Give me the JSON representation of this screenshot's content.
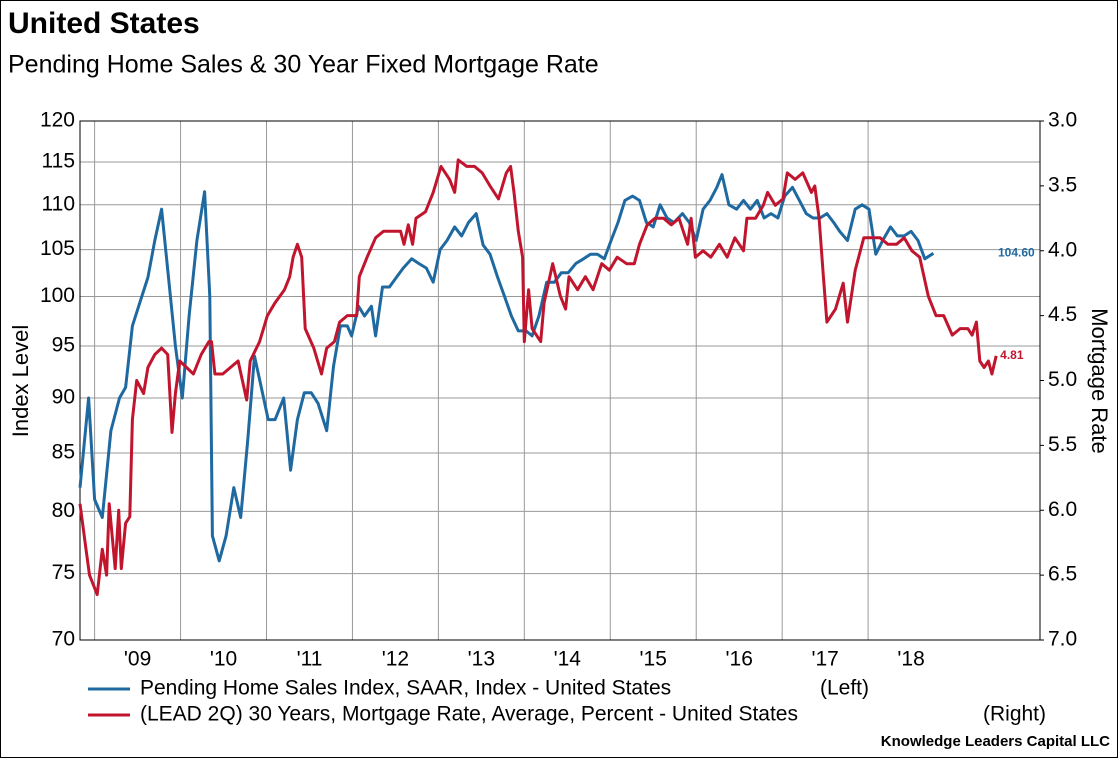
{
  "chart_data": {
    "type": "line",
    "title": "United States",
    "subtitle": "Pending Home Sales & 30 Year Fixed Mortgage Rate",
    "ylabel": "Index Level",
    "y2label": "Mortgage Rate",
    "source": "Knowledge Leaders Capital LLC",
    "xlim": [
      2008.83,
      2020.0
    ],
    "xticks": [
      {
        "value": 2009,
        "label": "'09"
      },
      {
        "value": 2010,
        "label": "'10"
      },
      {
        "value": 2011,
        "label": "'11"
      },
      {
        "value": 2012,
        "label": "'12"
      },
      {
        "value": 2013,
        "label": "'13"
      },
      {
        "value": 2014,
        "label": "'14"
      },
      {
        "value": 2015,
        "label": "'15"
      },
      {
        "value": 2016,
        "label": "'16"
      },
      {
        "value": 2017,
        "label": "'17"
      },
      {
        "value": 2018,
        "label": "'18"
      }
    ],
    "ylim": [
      70,
      120
    ],
    "ylog": true,
    "yticks": [
      70,
      75,
      80,
      85,
      90,
      95,
      100,
      105,
      110,
      115,
      120
    ],
    "y2lim": [
      3,
      7
    ],
    "y2_inverted": true,
    "y2ticks": [
      {
        "value": 3,
        "label": "3.0"
      },
      {
        "value": 3.5,
        "label": "3.5"
      },
      {
        "value": 4,
        "label": "4.0"
      },
      {
        "value": 4.5,
        "label": "4.5"
      },
      {
        "value": 5,
        "label": "5.0"
      },
      {
        "value": 5.5,
        "label": "5.5"
      },
      {
        "value": 6,
        "label": "6.0"
      },
      {
        "value": 6.5,
        "label": "6.5"
      },
      {
        "value": 7,
        "label": "7.0"
      }
    ],
    "grid": true,
    "series": [
      {
        "name": "Pending Home Sales Index, SAAR, Index - United States",
        "side": "(Left)",
        "color": "#1f69a1",
        "axis": "y",
        "end_label": "104.60",
        "x": [
          2008.83,
          2008.93,
          2009.0,
          2009.09,
          2009.19,
          2009.29,
          2009.36,
          2009.44,
          2009.53,
          2009.62,
          2009.7,
          2009.78,
          2009.86,
          2009.94,
          2010.02,
          2010.1,
          2010.19,
          2010.28,
          2010.34,
          2010.37,
          2010.45,
          2010.53,
          2010.62,
          2010.7,
          2010.78,
          2010.86,
          2010.94,
          2011.02,
          2011.1,
          2011.2,
          2011.28,
          2011.36,
          2011.44,
          2011.52,
          2011.6,
          2011.7,
          2011.78,
          2011.86,
          2011.94,
          2011.99,
          2012.07,
          2012.14,
          2012.22,
          2012.27,
          2012.35,
          2012.43,
          2012.51,
          2012.59,
          2012.69,
          2012.77,
          2012.86,
          2012.94,
          2013.02,
          2013.1,
          2013.19,
          2013.27,
          2013.35,
          2013.44,
          2013.52,
          2013.6,
          2013.69,
          2013.77,
          2013.85,
          2013.93,
          2014.02,
          2014.09,
          2014.17,
          2014.26,
          2014.35,
          2014.43,
          2014.51,
          2014.6,
          2014.69,
          2014.77,
          2014.85,
          2014.93,
          2015.01,
          2015.09,
          2015.17,
          2015.26,
          2015.34,
          2015.42,
          2015.5,
          2015.58,
          2015.66,
          2015.74,
          2015.84,
          2015.92,
          2016.0,
          2016.08,
          2016.16,
          2016.24,
          2016.3,
          2016.38,
          2016.47,
          2016.55,
          2016.63,
          2016.71,
          2016.79,
          2016.87,
          2016.95,
          2017.03,
          2017.12,
          2017.2,
          2017.28,
          2017.36,
          2017.44,
          2017.52,
          2017.6,
          2017.67,
          2017.76,
          2017.85,
          2017.93,
          2018.01,
          2018.09,
          2018.17,
          2018.26,
          2018.34,
          2018.42,
          2018.5,
          2018.58,
          2018.66,
          2018.76
        ],
        "values": [
          82,
          90,
          81,
          79.5,
          87,
          90,
          91,
          97,
          99.5,
          102,
          106,
          109.5,
          102,
          95,
          90,
          98,
          106,
          111.5,
          100,
          78,
          76,
          78,
          82,
          79.5,
          86,
          94,
          91,
          88,
          88,
          90,
          83.5,
          88,
          90.5,
          90.5,
          89.5,
          87,
          93,
          97,
          97,
          96,
          99,
          98,
          99,
          96,
          101,
          101,
          102,
          103,
          104,
          103.5,
          103,
          101.5,
          105,
          106,
          107.5,
          106.5,
          108,
          109,
          105.5,
          104.5,
          102,
          100,
          98,
          96.5,
          96.5,
          96,
          98,
          101.5,
          101.5,
          102.5,
          102.5,
          103.5,
          104,
          104.5,
          104.5,
          104,
          106,
          108,
          110.5,
          111,
          110.5,
          108,
          107.5,
          110,
          108.5,
          108,
          109,
          108,
          106,
          109.5,
          110.5,
          112,
          113.5,
          110,
          109.5,
          110.5,
          109.5,
          110.5,
          108.5,
          109,
          108.5,
          111,
          112,
          110.5,
          109,
          108.5,
          108.5,
          109,
          108,
          107,
          106,
          109.5,
          110,
          109.5,
          104.5,
          106,
          107.5,
          106.5,
          106.5,
          107,
          106,
          104,
          104.6
        ]
      },
      {
        "name": "(LEAD 2Q) 30 Years, Mortgage Rate, Average, Percent - United States",
        "side": "(Right)",
        "color": "#c1152e",
        "axis": "y2",
        "end_label": "4.81",
        "x": [
          2008.83,
          2008.9,
          2008.94,
          2009.03,
          2009.09,
          2009.14,
          2009.17,
          2009.24,
          2009.28,
          2009.31,
          2009.36,
          2009.41,
          2009.44,
          2009.49,
          2009.57,
          2009.62,
          2009.7,
          2009.78,
          2009.85,
          2009.9,
          2009.94,
          2009.99,
          2010.07,
          2010.15,
          2010.24,
          2010.33,
          2010.36,
          2010.4,
          2010.49,
          2010.58,
          2010.67,
          2010.77,
          2010.81,
          2010.92,
          2011.01,
          2011.1,
          2011.21,
          2011.27,
          2011.31,
          2011.36,
          2011.41,
          2011.45,
          2011.55,
          2011.64,
          2011.7,
          2011.79,
          2011.85,
          2011.94,
          2012.05,
          2012.08,
          2012.17,
          2012.27,
          2012.36,
          2012.47,
          2012.56,
          2012.6,
          2012.65,
          2012.7,
          2012.74,
          2012.85,
          2012.94,
          2013.03,
          2013.13,
          2013.19,
          2013.23,
          2013.33,
          2013.42,
          2013.51,
          2013.6,
          2013.7,
          2013.79,
          2013.84,
          2013.88,
          2013.93,
          2013.98,
          2014.0,
          2014.05,
          2014.09,
          2014.19,
          2014.23,
          2014.33,
          2014.42,
          2014.48,
          2014.52,
          2014.62,
          2014.71,
          2014.8,
          2014.9,
          2014.99,
          2015.08,
          2015.19,
          2015.28,
          2015.34,
          2015.43,
          2015.52,
          2015.62,
          2015.71,
          2015.8,
          2015.9,
          2015.94,
          2015.99,
          2016.08,
          2016.17,
          2016.27,
          2016.36,
          2016.45,
          2016.55,
          2016.59,
          2016.69,
          2016.78,
          2016.83,
          2016.92,
          2017.01,
          2017.06,
          2017.15,
          2017.24,
          2017.34,
          2017.38,
          2017.43,
          2017.48,
          2017.52,
          2017.62,
          2017.71,
          2017.76,
          2017.85,
          2017.95,
          2018.05,
          2018.14,
          2018.23,
          2018.33,
          2018.42,
          2018.51,
          2018.6,
          2018.7,
          2018.79,
          2018.88,
          2018.98,
          2019.07,
          2019.16,
          2019.21,
          2019.26,
          2019.3,
          2019.35,
          2019.4,
          2019.44,
          2019.49
        ],
        "values": [
          5.95,
          6.3,
          6.5,
          6.65,
          6.3,
          6.5,
          5.95,
          6.45,
          6.0,
          6.45,
          6.1,
          6.05,
          5.3,
          5.0,
          5.1,
          4.9,
          4.8,
          4.75,
          4.8,
          5.4,
          5.1,
          4.85,
          4.9,
          4.95,
          4.8,
          4.7,
          4.7,
          4.95,
          4.95,
          4.9,
          4.85,
          5.15,
          4.85,
          4.7,
          4.5,
          4.4,
          4.3,
          4.2,
          4.05,
          3.95,
          4.05,
          4.6,
          4.75,
          4.95,
          4.75,
          4.7,
          4.55,
          4.5,
          4.5,
          4.2,
          4.05,
          3.9,
          3.85,
          3.85,
          3.85,
          3.95,
          3.8,
          3.95,
          3.75,
          3.7,
          3.55,
          3.35,
          3.45,
          3.55,
          3.3,
          3.35,
          3.35,
          3.4,
          3.5,
          3.6,
          3.4,
          3.35,
          3.55,
          3.85,
          4.05,
          4.7,
          4.3,
          4.6,
          4.7,
          4.4,
          4.1,
          4.35,
          4.45,
          4.2,
          4.3,
          4.2,
          4.3,
          4.1,
          4.15,
          4.05,
          4.1,
          4.1,
          3.95,
          3.8,
          3.75,
          3.75,
          3.8,
          3.75,
          3.95,
          3.75,
          4.05,
          4.0,
          4.05,
          3.95,
          4.05,
          3.9,
          4.0,
          3.75,
          3.75,
          3.65,
          3.55,
          3.65,
          3.6,
          3.4,
          3.45,
          3.4,
          3.55,
          3.5,
          3.75,
          4.2,
          4.55,
          4.45,
          4.25,
          4.55,
          4.15,
          3.9,
          3.9,
          3.9,
          3.95,
          3.95,
          3.9,
          4.0,
          4.05,
          4.35,
          4.5,
          4.5,
          4.65,
          4.6,
          4.6,
          4.65,
          4.55,
          4.85,
          4.9,
          4.85,
          4.95,
          4.81
        ]
      }
    ]
  }
}
